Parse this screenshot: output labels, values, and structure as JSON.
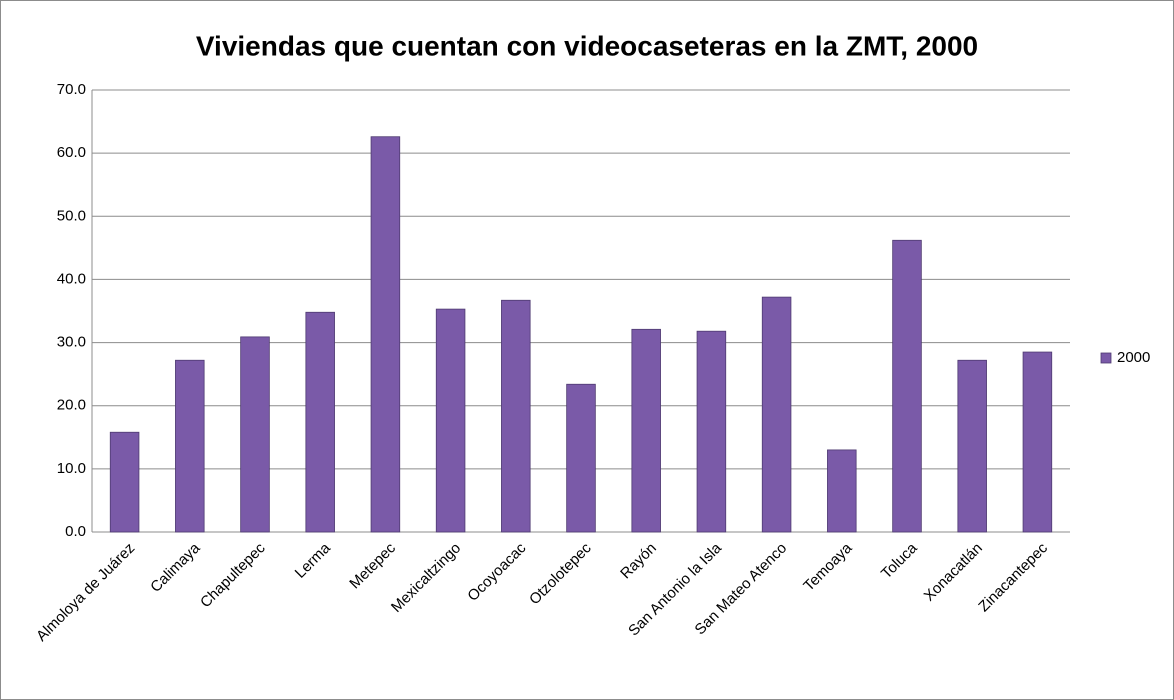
{
  "chart_data": {
    "type": "bar",
    "title": "Viviendas que cuentan con videocaseteras en la ZMT, 2000",
    "categories": [
      "Almoloya de Juárez",
      "Calimaya",
      "Chapultepec",
      "Lerma",
      "Metepec",
      "Mexicaltzingo",
      "Ocoyoacac",
      "Otzolotepec",
      "Rayón",
      "San Antonio la Isla",
      "San Mateo Atenco",
      "Temoaya",
      "Toluca",
      "Xonacatlán",
      "Zinacantepec"
    ],
    "series": [
      {
        "name": "2000",
        "color": "#7a5aa8",
        "values": [
          15.8,
          27.2,
          30.9,
          34.8,
          62.6,
          35.3,
          36.7,
          23.4,
          32.1,
          31.8,
          37.2,
          13.0,
          46.2,
          27.2,
          28.5
        ]
      }
    ],
    "ylim": [
      0,
      70
    ],
    "yticks": [
      {
        "value": 0,
        "label": "0.0"
      },
      {
        "value": 10,
        "label": "10.0"
      },
      {
        "value": 20,
        "label": "20.0"
      },
      {
        "value": 30,
        "label": "30.0"
      },
      {
        "value": 40,
        "label": "40.0"
      },
      {
        "value": 50,
        "label": "50.0"
      },
      {
        "value": 60,
        "label": "60.0"
      },
      {
        "value": 70,
        "label": "70.0"
      }
    ],
    "grid": true,
    "legend": "right"
  }
}
